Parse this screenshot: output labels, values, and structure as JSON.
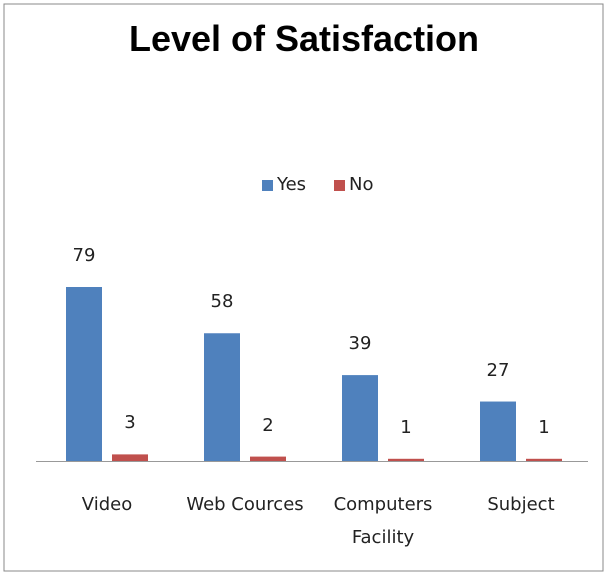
{
  "chart_data": {
    "type": "bar",
    "title": "Level of Satisfaction",
    "categories": [
      "Video",
      "Web Cources",
      "Computers Facility",
      "Subject"
    ],
    "series": [
      {
        "name": "Yes",
        "color": "#4f81bd",
        "values": [
          79,
          58,
          39,
          27
        ]
      },
      {
        "name": "No",
        "color": "#c0504d",
        "values": [
          3,
          2,
          1,
          1
        ]
      }
    ],
    "legend": "top"
  }
}
